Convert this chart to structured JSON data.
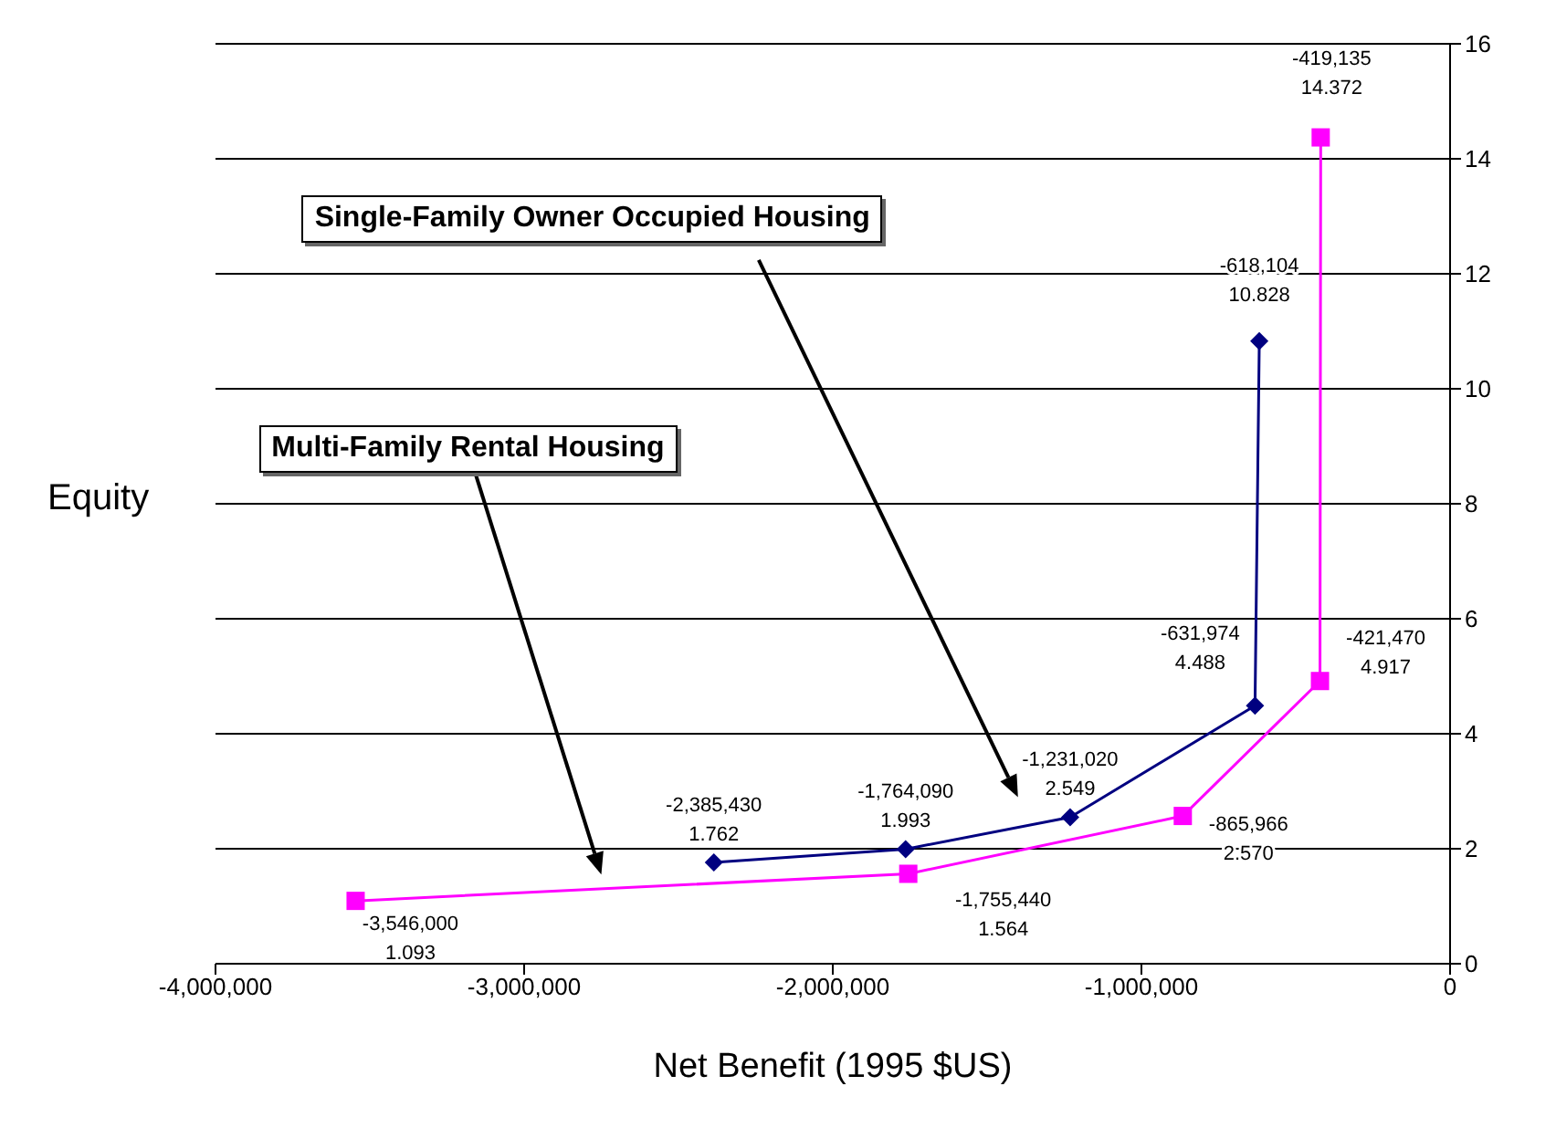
{
  "chart_data": {
    "type": "line",
    "xlabel": "Net Benefit (1995 $US)",
    "ylabel": "Equity",
    "xlim": [
      -4000000,
      0
    ],
    "xticks": [
      {
        "value": -4000000,
        "label": "-4,000,000"
      },
      {
        "value": -3000000,
        "label": "-3,000,000"
      },
      {
        "value": -2000000,
        "label": "-2,000,000"
      },
      {
        "value": -1000000,
        "label": "-1,000,000"
      },
      0
    ],
    "ylim": [
      0,
      16
    ],
    "yticks": [
      0,
      2,
      4,
      6,
      8,
      10,
      12,
      14,
      16
    ],
    "grid": "y",
    "annotations": [
      "Single-Family Owner Occupied Housing",
      "Multi-Family Rental Housing"
    ],
    "series": [
      {
        "color": "#000080",
        "marker": "diamond",
        "x": [
          -2385430,
          -1764090,
          -1231020,
          -631974,
          -618104
        ],
        "values": [
          1.762,
          1.993,
          2.549,
          4.488,
          10.828
        ],
        "value_labels": [
          "-2,385,430\n1.762",
          "-1,764,090\n1.993",
          "-1,231,020\n2.549",
          "-631,974\n4.488",
          "-618,104\n10.828"
        ]
      },
      {
        "color": "#ff00ff",
        "marker": "square",
        "x": [
          -3546000,
          -1755440,
          -865966,
          -421470,
          -419135
        ],
        "values": [
          1.093,
          1.564,
          2.57,
          4.917,
          14.372
        ],
        "value_labels": [
          "-3,546,000\n1.093",
          "-1,755,440\n1.564",
          "-865,966\n2.570",
          "-421,470\n4.917",
          "-419,135\n14.372"
        ]
      }
    ]
  }
}
